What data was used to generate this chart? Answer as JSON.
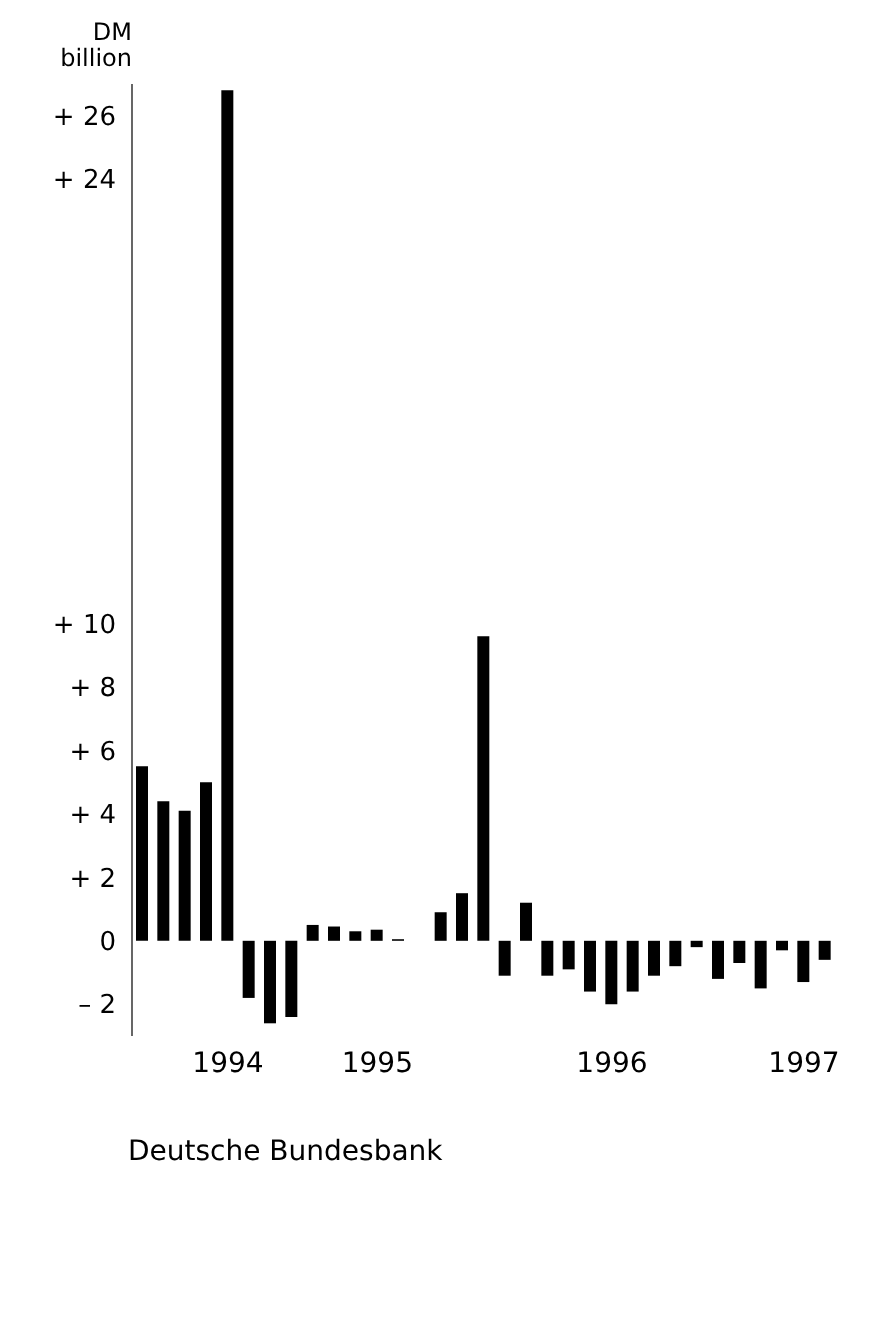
{
  "chart_data": {
    "type": "bar",
    "ylabel": "DM billion",
    "categories": [
      null,
      null,
      null,
      null,
      "1994",
      null,
      null,
      null,
      null,
      null,
      null,
      "1995",
      null,
      null,
      null,
      null,
      null,
      null,
      null,
      null,
      null,
      null,
      "1996",
      null,
      null,
      null,
      null,
      null,
      null,
      null,
      null,
      "1997",
      null
    ],
    "series": [
      {
        "color": "#000000",
        "values": [
          5.5,
          4.4,
          4.1,
          5.0,
          26.8,
          -1.8,
          -2.6,
          -2.4,
          0.5,
          0.45,
          0.3,
          0.35,
          0.05,
          0,
          0.9,
          1.5,
          9.6,
          -1.1,
          1.2,
          -1.1,
          -0.9,
          -1.6,
          -2.0,
          -1.6,
          -1.1,
          -0.8,
          -0.2,
          -1.2,
          -0.7,
          -1.5,
          -0.3,
          -1.3,
          -0.6
        ]
      }
    ],
    "ylim": [
      -3,
      27
    ],
    "yticks": [
      {
        "value": -2,
        "label": "– 2"
      },
      0,
      {
        "value": 2,
        "label": "+ 2"
      },
      {
        "value": 4,
        "label": "+ 4"
      },
      {
        "value": 6,
        "label": "+ 6"
      },
      {
        "value": 8,
        "label": "+ 8"
      },
      {
        "value": 10,
        "label": "+ 10"
      },
      {
        "value": 24,
        "label": "+ 24"
      },
      {
        "value": 26,
        "label": "+ 26"
      }
    ],
    "grid": false,
    "legend": false,
    "annotations": [
      "Deutsche Bundesbank"
    ]
  }
}
